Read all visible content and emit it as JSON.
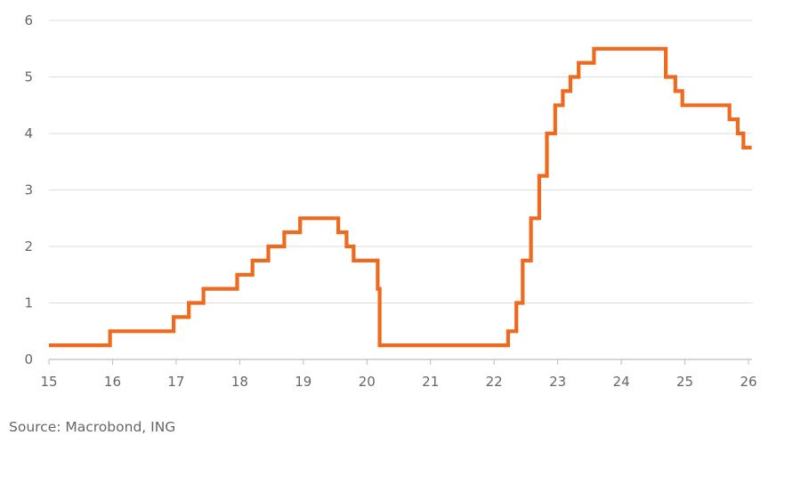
{
  "chart_data": {
    "type": "line",
    "step": true,
    "title": "",
    "xlabel": "",
    "ylabel": "",
    "xlim": [
      15,
      26
    ],
    "ylim": [
      0,
      6
    ],
    "xticks": [
      15,
      16,
      17,
      18,
      19,
      20,
      21,
      22,
      23,
      24,
      25,
      26
    ],
    "xtick_labels": [
      "15",
      "16",
      "17",
      "18",
      "19",
      "20",
      "21",
      "22",
      "23",
      "24",
      "25",
      "26"
    ],
    "yticks": [
      0,
      1,
      2,
      3,
      4,
      5,
      6
    ],
    "ytick_labels": [
      "0",
      "1",
      "2",
      "3",
      "4",
      "5",
      "6"
    ],
    "grid": "horizontal",
    "legend": "none",
    "series": [
      {
        "color": "#ee6a1f",
        "x": [
          15.0,
          15.96,
          16.96,
          17.2,
          17.43,
          17.96,
          18.2,
          18.45,
          18.7,
          18.95,
          19.55,
          19.68,
          19.79,
          20.17,
          20.2,
          22.22,
          22.35,
          22.45,
          22.58,
          22.71,
          22.83,
          22.96,
          23.08,
          23.2,
          23.33,
          23.57,
          24.7,
          24.85,
          24.96,
          25.7,
          25.83,
          25.92,
          26.05
        ],
        "y": [
          0.25,
          0.5,
          0.75,
          1.0,
          1.25,
          1.5,
          1.75,
          2.0,
          2.25,
          2.5,
          2.25,
          2.0,
          1.75,
          1.25,
          0.25,
          0.5,
          1.0,
          1.75,
          2.5,
          3.25,
          4.0,
          4.5,
          4.75,
          5.0,
          5.25,
          5.5,
          5.0,
          4.75,
          4.5,
          4.25,
          4.0,
          3.75,
          3.75
        ]
      }
    ]
  },
  "source": "Source: Macrobond, ING"
}
